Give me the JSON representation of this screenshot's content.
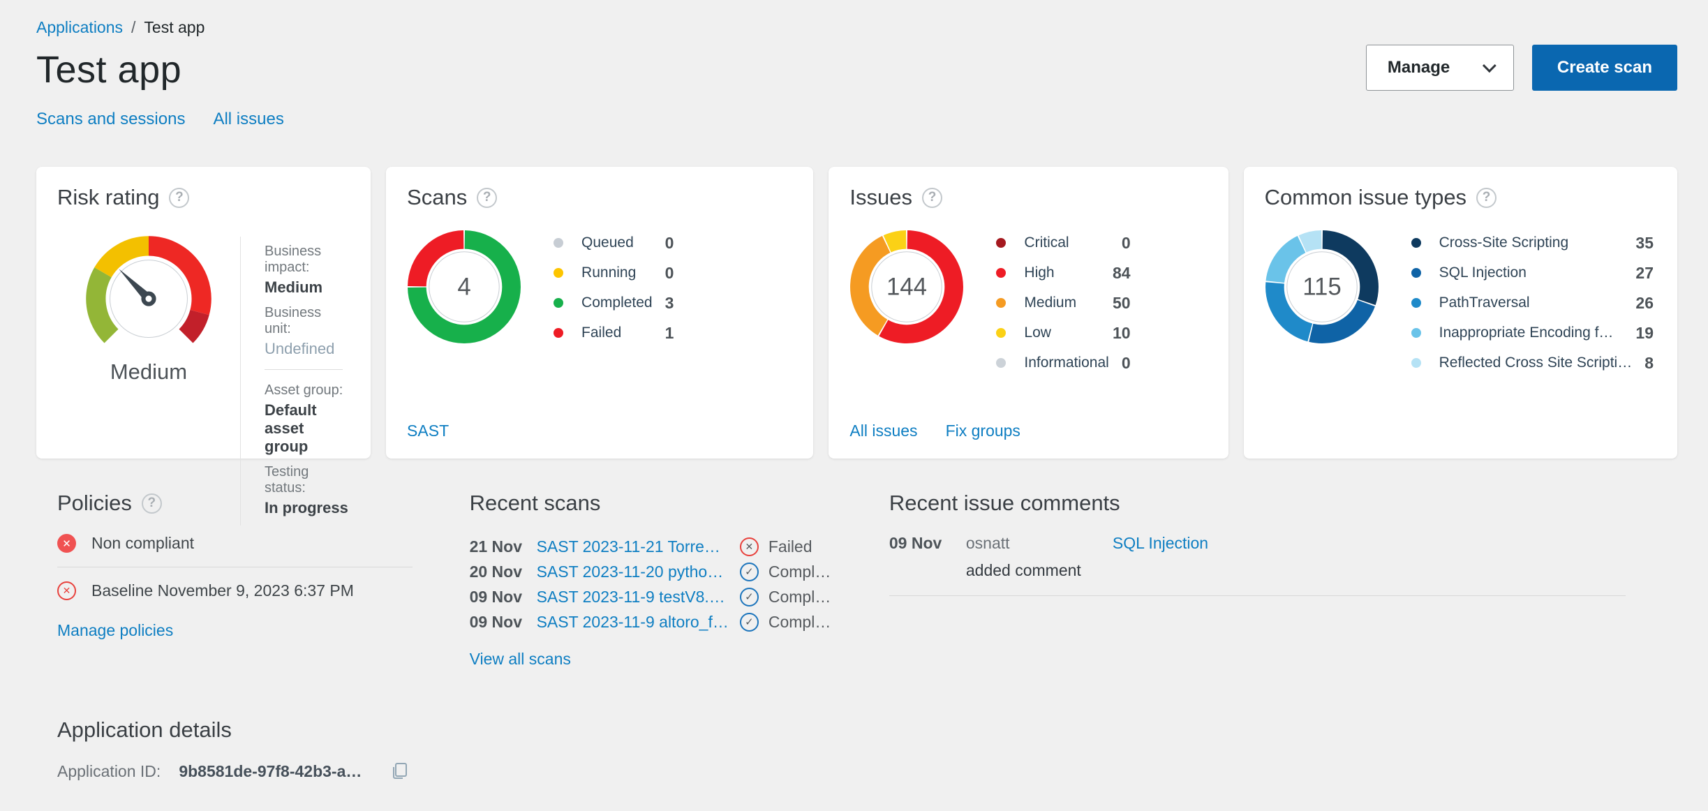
{
  "page": {
    "breadcrumb": {
      "parent": "Applications",
      "separator": "/",
      "current": "Test app"
    },
    "title": "Test app",
    "tabs": [
      {
        "label": "Scans and sessions"
      },
      {
        "label": "All issues"
      }
    ],
    "actions": {
      "manage_label": "Manage",
      "create_scan_label": "Create scan"
    }
  },
  "colors": {
    "link_blue": "#0e7ec2",
    "primary_button_blue": "#0a67b0",
    "background_gray": "#f0f0f0",
    "card_white": "#ffffff",
    "failed_red": "#e8413c",
    "completed_check_blue": "#1b74bc"
  },
  "cards": {
    "risk_rating": {
      "title": "Risk rating",
      "gauge_label": "Medium",
      "details": [
        {
          "label": "Business impact:",
          "value": "Medium"
        },
        {
          "label": "Business unit:",
          "value": "Undefined"
        },
        {
          "label": "Asset group:",
          "value": "Default asset group"
        },
        {
          "label": "Testing status:",
          "value": "In progress"
        }
      ]
    },
    "scans": {
      "title": "Scans",
      "footer_link": "SAST"
    },
    "issues": {
      "title": "Issues",
      "links": {
        "all_issues": "All issues",
        "fix_groups": "Fix groups"
      }
    },
    "common_issue_types": {
      "title": "Common issue types"
    }
  },
  "sections": {
    "policies": {
      "title": "Policies",
      "compliance": "Non compliant",
      "baseline": "Baseline November 9, 2023 6:37 PM",
      "manage_link": "Manage policies"
    },
    "recent_scans": {
      "title": "Recent scans",
      "rows": [
        {
          "date": "21 Nov",
          "name": "SAST 2023-11-21 Torre…",
          "status": "Failed"
        },
        {
          "date": "20 Nov",
          "name": "SAST 2023-11-20 pytho…",
          "status": "Compl…"
        },
        {
          "date": "09 Nov",
          "name": "SAST 2023-11-9 testV8.…",
          "status": "Compl…"
        },
        {
          "date": "09 Nov",
          "name": "SAST 2023-11-9 altoro_f…",
          "status": "Compl…"
        }
      ],
      "view_all": "View all scans"
    },
    "recent_issue_comments": {
      "title": "Recent issue comments",
      "rows": [
        {
          "date": "09 Nov",
          "author": "osnatt",
          "action": "added comment",
          "issue": "SQL Injection"
        }
      ]
    },
    "application_details": {
      "title": "Application details",
      "id_label": "Application ID:",
      "id_value": "9b8581de-97f8-42b3-a…"
    }
  },
  "chart_data": [
    {
      "type": "gauge",
      "title": "Risk rating",
      "value_label": "Medium",
      "arc_total_deg": 270,
      "needle_angle_deg": -45,
      "segments": [
        {
          "label": "low",
          "color": "#93b637",
          "sweep_deg": 75
        },
        {
          "label": "medium",
          "color": "#f3c000",
          "sweep_deg": 60
        },
        {
          "label": "high",
          "color": "#ee2824",
          "sweep_deg": 105
        },
        {
          "label": "critical",
          "color": "#c2202a",
          "sweep_deg": 30
        }
      ]
    },
    {
      "type": "donut",
      "title": "Scans",
      "total": 4,
      "segments": [
        {
          "label": "Queued",
          "value": 0,
          "color": "#c7cdd4"
        },
        {
          "label": "Running",
          "value": 0,
          "color": "#fdc500"
        },
        {
          "label": "Completed",
          "value": 3,
          "color": "#17b04b"
        },
        {
          "label": "Failed",
          "value": 1,
          "color": "#ee1c25"
        }
      ]
    },
    {
      "type": "donut",
      "title": "Issues",
      "total": 144,
      "segments": [
        {
          "label": "Critical",
          "value": 0,
          "color": "#a5191f"
        },
        {
          "label": "High",
          "value": 84,
          "color": "#ee1c25"
        },
        {
          "label": "Medium",
          "value": 50,
          "color": "#f59b22"
        },
        {
          "label": "Low",
          "value": 10,
          "color": "#fbd116"
        },
        {
          "label": "Informational",
          "value": 0,
          "color": "#ccd2d8"
        }
      ]
    },
    {
      "type": "donut",
      "title": "Common issue types",
      "total": 115,
      "segments": [
        {
          "label": "Cross-Site Scripting",
          "value": 35,
          "color": "#0e3a5f"
        },
        {
          "label": "SQL Injection",
          "value": 27,
          "color": "#0f63a6"
        },
        {
          "label": "PathTraversal",
          "value": 26,
          "color": "#1f8ac9"
        },
        {
          "label": "Inappropriate Encoding f…",
          "value": 19,
          "color": "#6ac3e9"
        },
        {
          "label": "Reflected Cross Site Scripti…",
          "value": 8,
          "color": "#b5e2f5"
        }
      ]
    }
  ]
}
